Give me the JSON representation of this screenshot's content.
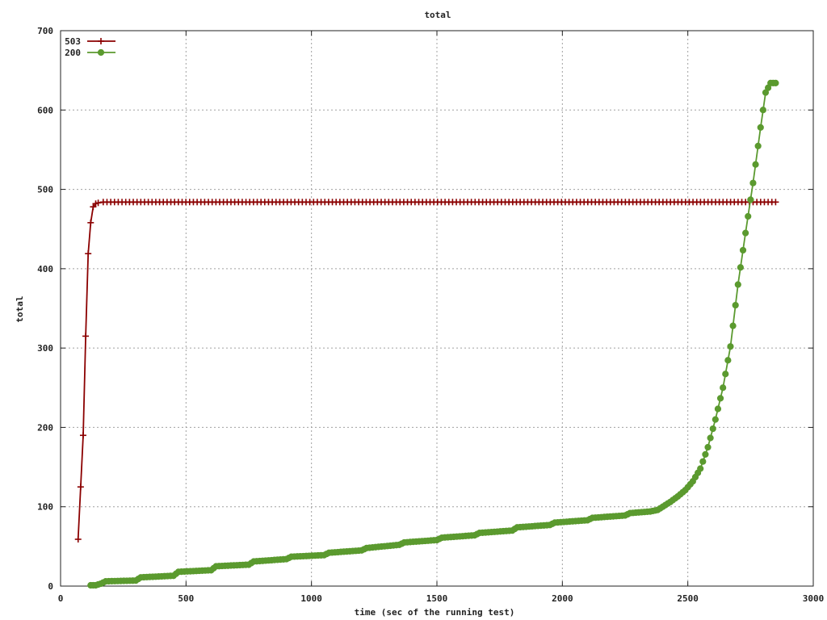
{
  "chart_data": {
    "type": "line",
    "title": "total",
    "xlabel": "time (sec of the running test)",
    "ylabel": "total",
    "xlim": [
      0,
      3000
    ],
    "ylim": [
      0,
      700
    ],
    "x_ticks": [
      0,
      500,
      1000,
      1500,
      2000,
      2500,
      3000
    ],
    "y_ticks": [
      0,
      100,
      200,
      300,
      400,
      500,
      600,
      700
    ],
    "grid": true,
    "legend_position": "top-left",
    "series": [
      {
        "name": "503",
        "color": "#8b0000",
        "marker": "plus",
        "points": [
          [
            70,
            59
          ],
          [
            80,
            125
          ],
          [
            90,
            190
          ],
          [
            100,
            315
          ],
          [
            110,
            419
          ],
          [
            120,
            458
          ],
          [
            130,
            478
          ],
          [
            140,
            482
          ],
          [
            150,
            483
          ],
          [
            170,
            484
          ],
          [
            2850,
            484
          ]
        ]
      },
      {
        "name": "200",
        "color": "#5b9a2f",
        "marker": "circle",
        "points": [
          [
            120,
            1
          ],
          [
            140,
            1
          ],
          [
            160,
            3
          ],
          [
            180,
            6
          ],
          [
            300,
            7
          ],
          [
            320,
            11
          ],
          [
            450,
            13
          ],
          [
            470,
            18
          ],
          [
            600,
            20
          ],
          [
            620,
            25
          ],
          [
            750,
            27
          ],
          [
            770,
            31
          ],
          [
            900,
            34
          ],
          [
            920,
            37
          ],
          [
            1050,
            39
          ],
          [
            1070,
            42
          ],
          [
            1200,
            45
          ],
          [
            1220,
            48
          ],
          [
            1350,
            52
          ],
          [
            1370,
            55
          ],
          [
            1500,
            58
          ],
          [
            1520,
            61
          ],
          [
            1650,
            64
          ],
          [
            1670,
            67
          ],
          [
            1800,
            70
          ],
          [
            1820,
            74
          ],
          [
            1950,
            77
          ],
          [
            1970,
            80
          ],
          [
            2100,
            83
          ],
          [
            2120,
            86
          ],
          [
            2250,
            89
          ],
          [
            2270,
            92
          ],
          [
            2350,
            94
          ],
          [
            2380,
            96
          ],
          [
            2400,
            100
          ],
          [
            2430,
            106
          ],
          [
            2460,
            113
          ],
          [
            2490,
            121
          ],
          [
            2520,
            132
          ],
          [
            2550,
            148
          ],
          [
            2580,
            175
          ],
          [
            2610,
            210
          ],
          [
            2640,
            250
          ],
          [
            2670,
            302
          ],
          [
            2700,
            380
          ],
          [
            2730,
            445
          ],
          [
            2760,
            508
          ],
          [
            2790,
            578
          ],
          [
            2810,
            622
          ],
          [
            2830,
            634
          ],
          [
            2850,
            634
          ]
        ]
      }
    ]
  }
}
